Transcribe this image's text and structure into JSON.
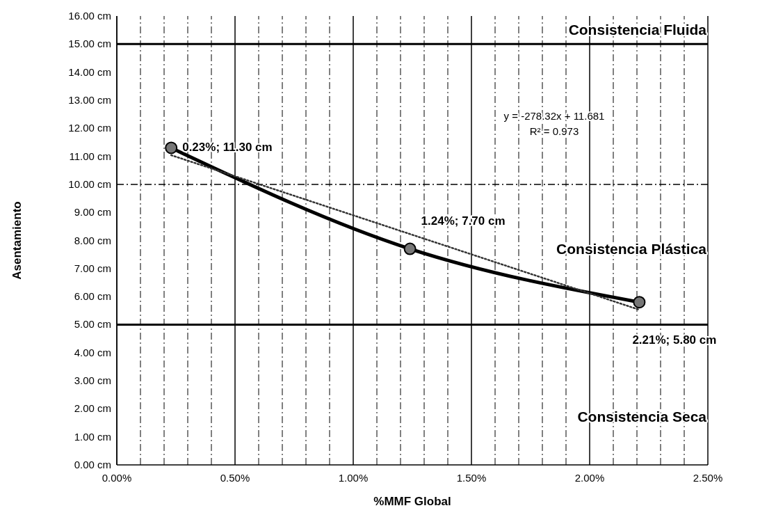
{
  "chart_data": {
    "type": "line",
    "xlabel": "%MMF Global",
    "ylabel": "Asentamiento",
    "xlim": [
      0,
      2.5
    ],
    "ylim": [
      0,
      16
    ],
    "xticks": [
      {
        "value": 0,
        "label": "0.00%"
      },
      {
        "value": 0.1,
        "label": null
      },
      {
        "value": 0.2,
        "label": null
      },
      {
        "value": 0.3,
        "label": null
      },
      {
        "value": 0.4,
        "label": null
      },
      {
        "value": 0.5,
        "label": "0.50%"
      },
      {
        "value": 0.6,
        "label": null
      },
      {
        "value": 0.7,
        "label": null
      },
      {
        "value": 0.8,
        "label": null
      },
      {
        "value": 0.9,
        "label": null
      },
      {
        "value": 1,
        "label": "1.00%"
      },
      {
        "value": 1.1,
        "label": null
      },
      {
        "value": 1.2,
        "label": null
      },
      {
        "value": 1.3,
        "label": null
      },
      {
        "value": 1.4,
        "label": null
      },
      {
        "value": 1.5,
        "label": "1.50%"
      },
      {
        "value": 1.6,
        "label": null
      },
      {
        "value": 1.7,
        "label": null
      },
      {
        "value": 1.8,
        "label": null
      },
      {
        "value": 1.9,
        "label": null
      },
      {
        "value": 2,
        "label": "2.00%"
      },
      {
        "value": 2.1,
        "label": null
      },
      {
        "value": 2.2,
        "label": null
      },
      {
        "value": 2.3,
        "label": null
      },
      {
        "value": 2.4,
        "label": null
      },
      {
        "value": 2.5,
        "label": "2.50%"
      }
    ],
    "yticks": [
      {
        "value": 0,
        "label": "0.00 cm"
      },
      {
        "value": 1,
        "label": "1.00 cm"
      },
      {
        "value": 2,
        "label": "2.00 cm"
      },
      {
        "value": 3,
        "label": "3.00 cm"
      },
      {
        "value": 4,
        "label": "4.00 cm"
      },
      {
        "value": 5,
        "label": "5.00 cm"
      },
      {
        "value": 6,
        "label": "6.00 cm"
      },
      {
        "value": 7,
        "label": "7.00 cm"
      },
      {
        "value": 8,
        "label": "8.00 cm"
      },
      {
        "value": 9,
        "label": "9.00 cm"
      },
      {
        "value": 10,
        "label": "10.00 cm"
      },
      {
        "value": 11,
        "label": "11.00 cm"
      },
      {
        "value": 12,
        "label": "12.00 cm"
      },
      {
        "value": 13,
        "label": "13.00 cm"
      },
      {
        "value": 14,
        "label": "14.00 cm"
      },
      {
        "value": 15,
        "label": "15.00 cm"
      },
      {
        "value": 16,
        "label": "16.00 cm"
      }
    ],
    "grid": "x",
    "series": [
      {
        "type": "line",
        "color": "#000000",
        "x": [
          0.23,
          1.24,
          2.21
        ],
        "values": [
          11.3,
          7.7,
          5.8
        ],
        "marker": "circle",
        "line_style": "solid",
        "value_labels": [
          "0.23%; 11.30 cm",
          "1.24%; 7.70 cm",
          "2.21%; 5.80 cm"
        ]
      },
      {
        "type": "line",
        "color": "#333333",
        "x": [
          0.23,
          2.21
        ],
        "values": [
          11.04,
          5.53
        ],
        "marker": "none",
        "line_style": "dotted"
      }
    ],
    "ref_lines": [
      {
        "axis": "y",
        "value": 15,
        "line_style": "solid"
      },
      {
        "axis": "y",
        "value": 10,
        "line_style": "dashed"
      },
      {
        "axis": "y",
        "value": 5,
        "line_style": "solid"
      }
    ],
    "annotations": [
      "y = -278.32x + 11.681",
      "R² = 0.973",
      "Consistencia Fluida",
      "Consistencia Plástica",
      "Consistencia Seca"
    ]
  }
}
